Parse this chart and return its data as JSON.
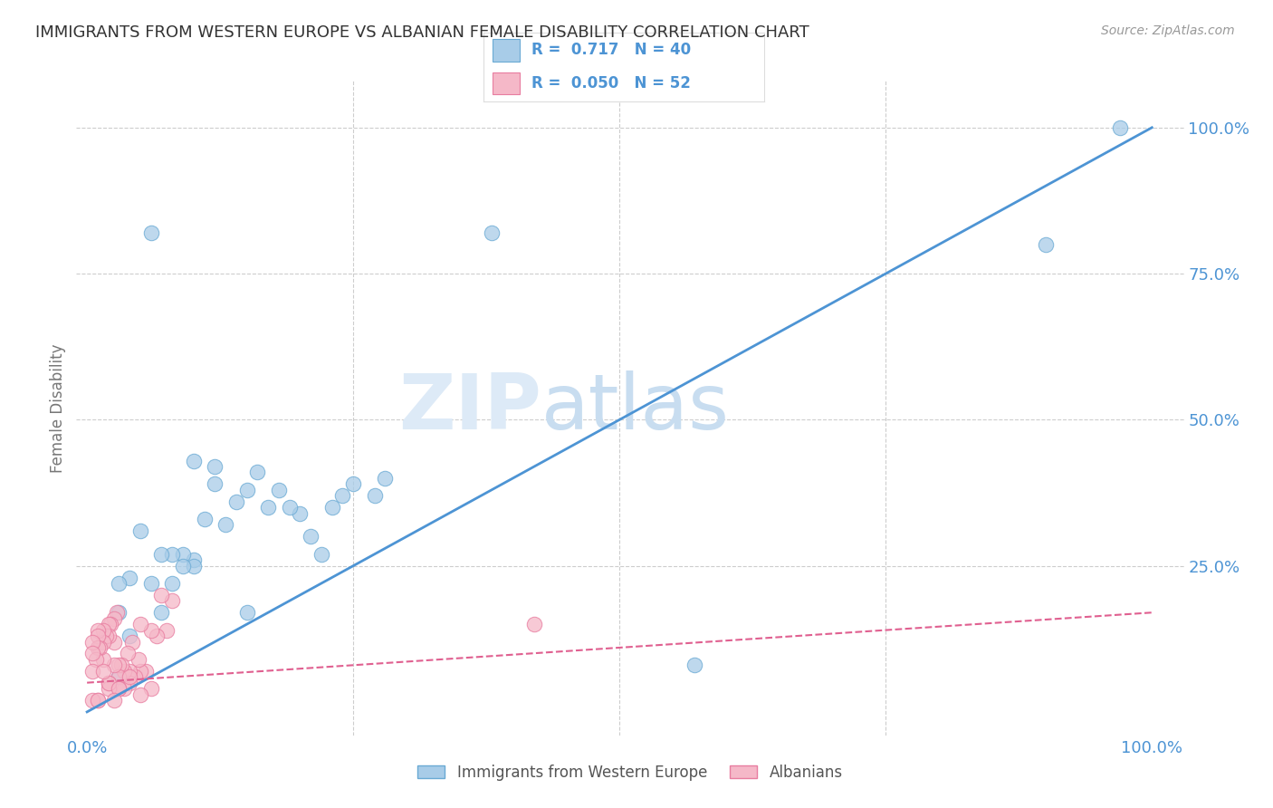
{
  "title": "IMMIGRANTS FROM WESTERN EUROPE VS ALBANIAN FEMALE DISABILITY CORRELATION CHART",
  "source": "Source: ZipAtlas.com",
  "ylabel": "Female Disability",
  "watermark": "ZIPatlas",
  "blue_R": 0.717,
  "blue_N": 40,
  "pink_R": 0.05,
  "pink_N": 52,
  "xlim": [
    -0.01,
    1.03
  ],
  "ylim": [
    -0.04,
    1.08
  ],
  "blue_color": "#a8cce8",
  "blue_edge_color": "#6aaad4",
  "pink_color": "#f5b8c8",
  "pink_edge_color": "#e87da0",
  "blue_line_color": "#4d94d4",
  "pink_line_color": "#e06090",
  "background_color": "#ffffff",
  "grid_color": "#c8c8c8",
  "legend_label_blue": "Immigrants from Western Europe",
  "legend_label_pink": "Albanians",
  "blue_x": [
    0.97,
    0.9,
    0.57,
    0.38,
    0.28,
    0.27,
    0.25,
    0.24,
    0.23,
    0.22,
    0.21,
    0.2,
    0.19,
    0.18,
    0.17,
    0.16,
    0.15,
    0.15,
    0.14,
    0.13,
    0.12,
    0.12,
    0.11,
    0.1,
    0.1,
    0.1,
    0.09,
    0.09,
    0.08,
    0.08,
    0.07,
    0.07,
    0.06,
    0.06,
    0.05,
    0.04,
    0.04,
    0.03,
    0.03,
    0.03
  ],
  "blue_y": [
    1.0,
    0.8,
    0.08,
    0.82,
    0.4,
    0.37,
    0.39,
    0.37,
    0.35,
    0.27,
    0.3,
    0.34,
    0.35,
    0.38,
    0.35,
    0.41,
    0.38,
    0.17,
    0.36,
    0.32,
    0.42,
    0.39,
    0.33,
    0.26,
    0.25,
    0.43,
    0.27,
    0.25,
    0.27,
    0.22,
    0.27,
    0.17,
    0.82,
    0.22,
    0.31,
    0.13,
    0.23,
    0.22,
    0.06,
    0.17
  ],
  "pink_x": [
    0.08,
    0.075,
    0.07,
    0.065,
    0.06,
    0.06,
    0.055,
    0.05,
    0.05,
    0.048,
    0.045,
    0.042,
    0.04,
    0.04,
    0.038,
    0.035,
    0.035,
    0.032,
    0.03,
    0.03,
    0.03,
    0.028,
    0.025,
    0.025,
    0.025,
    0.022,
    0.02,
    0.02,
    0.02,
    0.02,
    0.018,
    0.015,
    0.015,
    0.015,
    0.012,
    0.01,
    0.01,
    0.01,
    0.01,
    0.008,
    0.005,
    0.005,
    0.005,
    0.42,
    0.005,
    0.01,
    0.02,
    0.03,
    0.04,
    0.05,
    0.025,
    0.015
  ],
  "pink_y": [
    0.19,
    0.14,
    0.2,
    0.13,
    0.14,
    0.04,
    0.07,
    0.15,
    0.07,
    0.09,
    0.06,
    0.12,
    0.07,
    0.05,
    0.1,
    0.07,
    0.04,
    0.08,
    0.08,
    0.06,
    0.04,
    0.17,
    0.16,
    0.12,
    0.08,
    0.15,
    0.15,
    0.13,
    0.05,
    0.04,
    0.13,
    0.14,
    0.12,
    0.09,
    0.11,
    0.14,
    0.13,
    0.11,
    0.02,
    0.09,
    0.12,
    0.1,
    0.07,
    0.15,
    0.02,
    0.02,
    0.05,
    0.04,
    0.06,
    0.03,
    0.02,
    0.07
  ],
  "blue_trend_x": [
    0.0,
    1.0
  ],
  "blue_trend_y": [
    0.0,
    1.0
  ],
  "pink_trend_x": [
    0.0,
    1.0
  ],
  "pink_trend_y": [
    0.05,
    0.17
  ]
}
